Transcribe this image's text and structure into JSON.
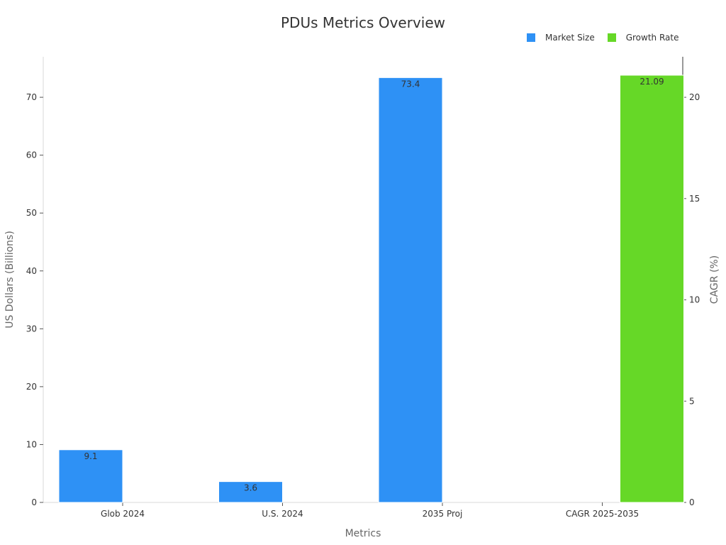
{
  "chart_data": {
    "type": "bar",
    "title": "PDUs Metrics Overview",
    "xlabel": "Metrics",
    "ylabel": "US Dollars (Billions)",
    "y2label": "CAGR (%)",
    "categories": [
      "Glob 2024",
      "U.S. 2024",
      "2035 Proj",
      "CAGR 2025-2035"
    ],
    "ylim": [
      0,
      77
    ],
    "y2lim": [
      0,
      22
    ],
    "yticks": [
      0,
      10,
      20,
      30,
      40,
      50,
      60,
      70
    ],
    "y2ticks": [
      0,
      5,
      10,
      15,
      20
    ],
    "legend_position": "top-right",
    "grid": false,
    "series": [
      {
        "name": "Market Size",
        "axis": "left",
        "color": "#2E91F5",
        "values": [
          9.1,
          3.6,
          73.4,
          null
        ],
        "labels": [
          "9.1",
          "3.6",
          "73.4",
          null
        ]
      },
      {
        "name": "Growth Rate",
        "axis": "right",
        "color": "#66D827",
        "values": [
          null,
          null,
          null,
          21.09
        ],
        "labels": [
          null,
          null,
          null,
          "21.09"
        ]
      }
    ]
  }
}
